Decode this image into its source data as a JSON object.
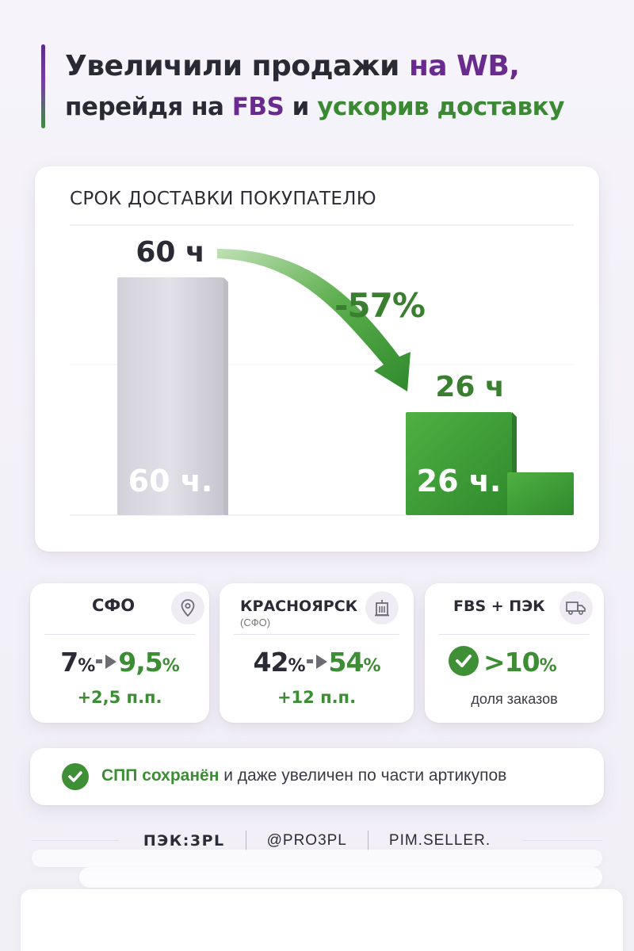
{
  "header": {
    "line1_a": "Увеличили продажи ",
    "line1_b": "на WB,",
    "line2_a": "перейдя на ",
    "line2_b": "FBS",
    "line2_c": " и ",
    "line2_d": "ускорив доставку"
  },
  "chart_data": {
    "type": "bar",
    "title": "СРОК ДОСТАВКИ ПОКУПАТЕЛЮ",
    "categories": [
      "",
      ""
    ],
    "values": [
      60,
      26
    ],
    "units": "ч",
    "top_labels": [
      "60 ч",
      "26 ч"
    ],
    "inner_labels": [
      "60 ч.",
      "26 ч."
    ],
    "change_label": "-57%",
    "colors": [
      "#dcdbe3",
      "#3f9a39"
    ]
  },
  "stats": [
    {
      "label": "СФО",
      "icon": "location-pin-icon",
      "from": "7",
      "to": "9,5",
      "unit": "%",
      "delta": "+2,5 п.п."
    },
    {
      "label": "КРАСНОЯРСК",
      "sublabel": "(СФО)",
      "icon": "building-icon",
      "from": "42",
      "to": "54",
      "unit": "%",
      "delta": "+12 п.п."
    },
    {
      "label": "FBS + ПЭК",
      "icon": "truck-icon",
      "value": ">10",
      "unit": "%",
      "note": "доля заказов"
    }
  ],
  "spp": {
    "bold": "СПП сохранён",
    "rest": " и даже увеличен по части артикупов"
  },
  "footer": {
    "brand1": "ПЭК:3PL",
    "brand2": "@PRO3PL",
    "brand3": "PIM.SELLER."
  }
}
